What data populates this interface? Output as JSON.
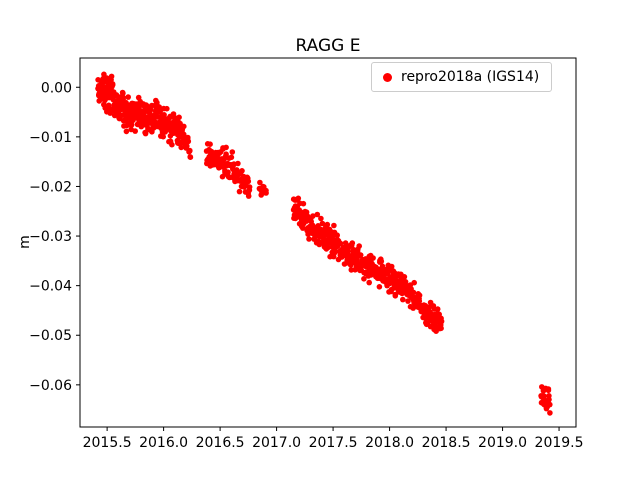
{
  "chart_data": {
    "type": "scatter",
    "title": "RAGG E",
    "xlabel": "",
    "ylabel": "m",
    "xlim": [
      2015.26,
      2019.65
    ],
    "ylim": [
      -0.0685,
      0.0059
    ],
    "xticks": [
      2015.5,
      2016.0,
      2016.5,
      2017.0,
      2017.5,
      2018.0,
      2018.5,
      2019.0,
      2019.5
    ],
    "xtick_labels": [
      "2015.5",
      "2016.0",
      "2016.5",
      "2017.0",
      "2017.5",
      "2018.0",
      "2018.5",
      "2019.0",
      "2019.5"
    ],
    "yticks": [
      0.0,
      -0.01,
      -0.02,
      -0.03,
      -0.04,
      -0.05,
      -0.06
    ],
    "ytick_labels": [
      "0.00",
      "−0.01",
      "−0.02",
      "−0.03",
      "−0.04",
      "−0.05",
      "−0.06"
    ],
    "grid": false,
    "legend_position": "upper right",
    "marker_color": "#ff0000",
    "marker_size_px": 5.6,
    "seed": 42,
    "series": [
      {
        "name": "repro2018a (IGS14)",
        "description": "Daily East-component position residuals declining from ~0.00 m at 2015.45 to ~-0.049 m at 2018.45, data gap, then cluster near -0.063 m at 2019.4",
        "segments": [
          {
            "x0": 2015.42,
            "x1": 2015.56,
            "y0": 0.0,
            "y1": -0.002,
            "n": 90,
            "noise": 0.0016
          },
          {
            "x0": 2015.56,
            "x1": 2015.72,
            "y0": -0.0035,
            "y1": -0.0055,
            "n": 80,
            "noise": 0.0015
          },
          {
            "x0": 2015.72,
            "x1": 2015.92,
            "y0": -0.005,
            "y1": -0.007,
            "n": 90,
            "noise": 0.0015
          },
          {
            "x0": 2015.92,
            "x1": 2016.18,
            "y0": -0.006,
            "y1": -0.0095,
            "n": 110,
            "noise": 0.0015
          },
          {
            "x0": 2016.18,
            "x1": 2016.24,
            "y0": -0.011,
            "y1": -0.013,
            "n": 16,
            "noise": 0.001
          },
          {
            "x0": 2016.38,
            "x1": 2016.62,
            "y0": -0.0135,
            "y1": -0.016,
            "n": 75,
            "noise": 0.0013
          },
          {
            "x0": 2016.62,
            "x1": 2016.76,
            "y0": -0.0165,
            "y1": -0.0205,
            "n": 42,
            "noise": 0.0012
          },
          {
            "x0": 2016.85,
            "x1": 2016.91,
            "y0": -0.0195,
            "y1": -0.0215,
            "n": 12,
            "noise": 0.0007
          },
          {
            "x0": 2017.15,
            "x1": 2017.27,
            "y0": -0.0245,
            "y1": -0.027,
            "n": 45,
            "noise": 0.0016
          },
          {
            "x0": 2017.27,
            "x1": 2017.47,
            "y0": -0.028,
            "y1": -0.0305,
            "n": 75,
            "noise": 0.0014
          },
          {
            "x0": 2017.47,
            "x1": 2017.62,
            "y0": -0.0305,
            "y1": -0.034,
            "n": 55,
            "noise": 0.0014
          },
          {
            "x0": 2017.62,
            "x1": 2017.92,
            "y0": -0.034,
            "y1": -0.0375,
            "n": 110,
            "noise": 0.0014
          },
          {
            "x0": 2017.92,
            "x1": 2018.1,
            "y0": -0.0375,
            "y1": -0.04,
            "n": 65,
            "noise": 0.0014
          },
          {
            "x0": 2018.1,
            "x1": 2018.32,
            "y0": -0.04,
            "y1": -0.045,
            "n": 80,
            "noise": 0.0013
          },
          {
            "x0": 2018.32,
            "x1": 2018.46,
            "y0": -0.045,
            "y1": -0.048,
            "n": 55,
            "noise": 0.0012
          },
          {
            "x0": 2019.34,
            "x1": 2019.42,
            "y0": -0.0625,
            "y1": -0.0635,
            "n": 26,
            "noise": 0.0012
          }
        ]
      }
    ]
  }
}
